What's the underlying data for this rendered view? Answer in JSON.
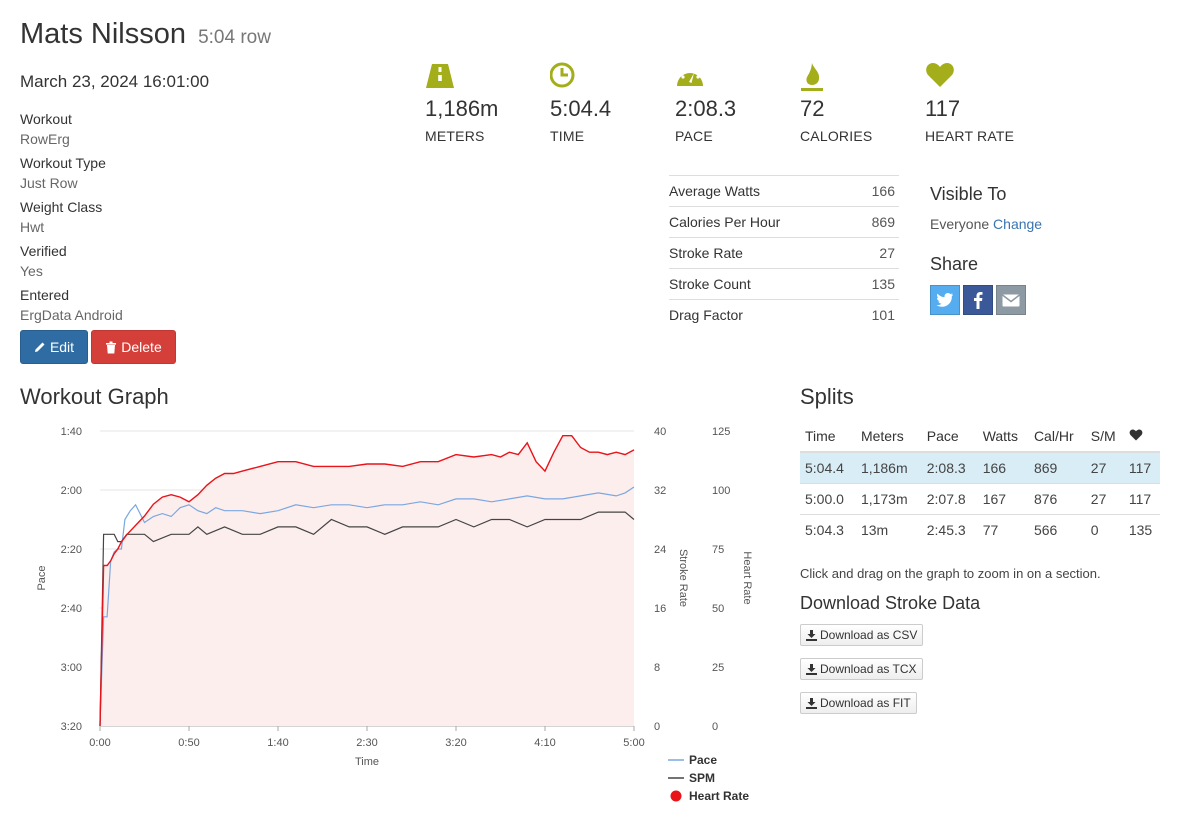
{
  "header": {
    "name": "Mats Nilsson",
    "subtitle": "5:04 row"
  },
  "date": "March 23, 2024 16:01:00",
  "meta": [
    {
      "label": "Workout",
      "value": "RowErg"
    },
    {
      "label": "Workout Type",
      "value": "Just Row"
    },
    {
      "label": "Weight Class",
      "value": "Hwt"
    },
    {
      "label": "Verified",
      "value": "Yes"
    },
    {
      "label": "Entered",
      "value": "ErgData Android"
    }
  ],
  "buttons": {
    "edit": "Edit",
    "delete": "Delete"
  },
  "stats": [
    {
      "icon": "road-icon",
      "value": "1,186m",
      "caption": "METERS"
    },
    {
      "icon": "clock-icon",
      "value": "5:04.4",
      "caption": "TIME"
    },
    {
      "icon": "speedometer-icon",
      "value": "2:08.3",
      "caption": "PACE"
    },
    {
      "icon": "flame-icon",
      "value": "72",
      "caption": "CALORIES"
    },
    {
      "icon": "heart-icon",
      "value": "117",
      "caption": "HEART RATE"
    }
  ],
  "details": [
    {
      "label": "Average Watts",
      "value": "166"
    },
    {
      "label": "Calories Per Hour",
      "value": "869"
    },
    {
      "label": "Stroke Rate",
      "value": "27"
    },
    {
      "label": "Stroke Count",
      "value": "135"
    },
    {
      "label": "Drag Factor",
      "value": "101"
    }
  ],
  "visibility": {
    "title": "Visible To",
    "value": "Everyone",
    "change": "Change"
  },
  "share": {
    "title": "Share",
    "colors": {
      "twitter": "#55acee",
      "facebook": "#3b5998",
      "email": "#8e9aa3"
    }
  },
  "graph": {
    "title": "Workout Graph"
  },
  "splits": {
    "title": "Splits",
    "headers": [
      "Time",
      "Meters",
      "Pace",
      "Watts",
      "Cal/Hr",
      "S/M"
    ],
    "rows": [
      [
        "5:04.4",
        "1,186m",
        "2:08.3",
        "166",
        "869",
        "27",
        "117"
      ],
      [
        "5:00.0",
        "1,173m",
        "2:07.8",
        "167",
        "876",
        "27",
        "117"
      ],
      [
        "5:04.3",
        "13m",
        "2:45.3",
        "77",
        "566",
        "0",
        "135"
      ]
    ]
  },
  "hint": "Click and drag on the graph to zoom in on a section.",
  "download": {
    "title": "Download Stroke Data",
    "buttons": [
      "Download as CSV",
      "Download as TCX",
      "Download as FIT"
    ]
  },
  "colors": {
    "pace": "#7ba7e0",
    "spm": "#444444",
    "heart_rate": "#e8141a",
    "hr_fill": "#fdeeee",
    "accent": "#a3ae1a"
  },
  "chart_data": {
    "type": "line",
    "xlabel": "Time",
    "x_ticks": [
      "0:00",
      "0:50",
      "1:40",
      "2:30",
      "3:20",
      "4:10",
      "5:00"
    ],
    "xlim_seconds": [
      0,
      300
    ],
    "axes": {
      "pace": {
        "label": "Pace",
        "ticks": [
          "1:40",
          "2:00",
          "2:20",
          "2:40",
          "3:00",
          "3:20"
        ],
        "range_seconds": [
          100,
          200
        ],
        "inverted": true
      },
      "stroke_rate": {
        "label": "Stroke Rate",
        "ticks": [
          "40",
          "32",
          "24",
          "16",
          "8",
          "0"
        ],
        "range": [
          0,
          40
        ]
      },
      "heart_rate": {
        "label": "Heart Rate",
        "ticks": [
          "125",
          "100",
          "75",
          "50",
          "25",
          "0"
        ],
        "range": [
          0,
          125
        ]
      }
    },
    "legend": [
      "Pace",
      "SPM",
      "Heart Rate"
    ],
    "series": [
      {
        "name": "Pace",
        "axis": "pace",
        "x": [
          0,
          2,
          4,
          6,
          8,
          10,
          12,
          14,
          17,
          20,
          25,
          30,
          35,
          40,
          45,
          50,
          55,
          60,
          65,
          70,
          80,
          90,
          100,
          110,
          120,
          130,
          140,
          150,
          160,
          170,
          180,
          190,
          200,
          210,
          220,
          230,
          240,
          250,
          260,
          270,
          280,
          290,
          295,
          300
        ],
        "y": [
          200,
          163,
          163,
          144,
          141,
          140,
          140,
          130,
          127,
          125,
          131,
          129,
          128,
          129,
          126,
          125,
          127,
          128,
          126,
          127,
          127,
          128,
          127,
          125,
          126,
          125,
          125,
          126,
          125,
          125,
          124,
          125,
          123,
          123,
          124,
          123,
          122,
          123,
          123,
          122,
          121,
          122,
          121,
          119
        ]
      },
      {
        "name": "SPM",
        "axis": "stroke_rate",
        "x": [
          0,
          2,
          4,
          6,
          8,
          10,
          12,
          15,
          20,
          25,
          30,
          40,
          50,
          55,
          60,
          70,
          80,
          90,
          100,
          110,
          120,
          130,
          140,
          150,
          160,
          170,
          180,
          190,
          200,
          210,
          220,
          230,
          240,
          250,
          260,
          270,
          280,
          290,
          295,
          300
        ],
        "y": [
          0,
          26,
          26,
          26,
          26,
          25,
          25,
          26,
          26,
          26,
          25,
          26,
          26,
          27,
          26,
          27,
          26,
          26,
          27,
          27,
          26,
          28,
          27,
          27,
          26,
          27,
          27,
          27,
          28,
          27,
          28,
          28,
          27,
          28,
          28,
          28,
          29,
          29,
          29,
          28
        ]
      },
      {
        "name": "Heart Rate",
        "axis": "heart_rate",
        "x": [
          0,
          2,
          4,
          6,
          8,
          10,
          12,
          15,
          20,
          25,
          30,
          35,
          40,
          45,
          50,
          55,
          60,
          65,
          70,
          75,
          80,
          90,
          100,
          110,
          120,
          130,
          140,
          150,
          160,
          170,
          180,
          185,
          190,
          200,
          210,
          220,
          225,
          230,
          235,
          240,
          245,
          250,
          255,
          260,
          265,
          270,
          275,
          280,
          285,
          290,
          295,
          300
        ],
        "y": [
          0,
          68,
          68,
          70,
          73,
          75,
          78,
          81,
          85,
          89,
          94,
          97,
          98,
          97,
          95,
          98,
          102,
          105,
          107,
          107,
          108,
          110,
          112,
          112,
          110,
          110,
          110,
          111,
          111,
          110,
          112,
          112,
          112,
          115,
          114,
          115,
          114,
          116,
          115,
          120,
          112,
          108,
          116,
          123,
          123,
          118,
          116,
          116,
          115,
          116,
          115,
          117
        ]
      }
    ]
  }
}
